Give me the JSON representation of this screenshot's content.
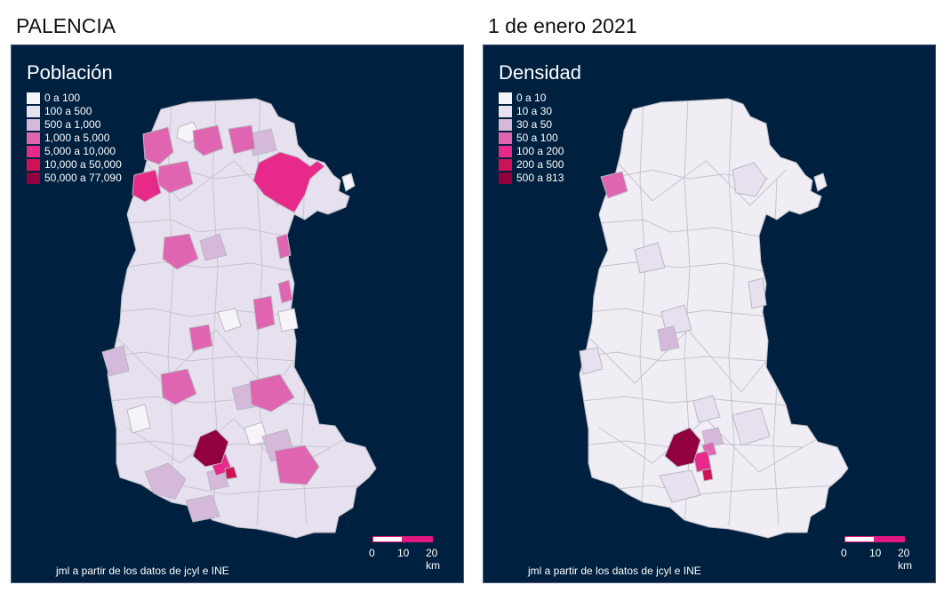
{
  "headings": {
    "left": "PALENCIA",
    "right": "1 de enero 2021"
  },
  "colors": {
    "background": "#00203f",
    "boundary": "#b9b9c2",
    "scale_accent": "#e0187f"
  },
  "left_map": {
    "legend_title": "Población",
    "legend": [
      {
        "label": "0 a 100",
        "color": "#f7f4f9"
      },
      {
        "label": "100 a 500",
        "color": "#e7e1ef"
      },
      {
        "label": "500 a 1,000",
        "color": "#d4b9da"
      },
      {
        "label": "1,000 a 5,000",
        "color": "#df65b0"
      },
      {
        "label": "5,000 a 10,000",
        "color": "#e7298a"
      },
      {
        "label": "10,000 a 50,000",
        "color": "#ce1256"
      },
      {
        "label": "50,000 a 77,090",
        "color": "#91003f"
      }
    ],
    "scale": {
      "ticks": [
        "0",
        "10",
        "20 km"
      ]
    },
    "credit": "jml a partir de los datos de jcyl e INE"
  },
  "right_map": {
    "legend_title": "Densidad",
    "legend": [
      {
        "label": "0 a 10",
        "color": "#f7f4f9"
      },
      {
        "label": "10 a 30",
        "color": "#e7e1ef"
      },
      {
        "label": "30 a 50",
        "color": "#d4b9da"
      },
      {
        "label": "50 a 100",
        "color": "#df65b0"
      },
      {
        "label": "100 a 200",
        "color": "#e7298a"
      },
      {
        "label": "200 a 500",
        "color": "#ce1256"
      },
      {
        "label": "500 a 813",
        "color": "#91003f"
      }
    ],
    "scale": {
      "ticks": [
        "0",
        "10",
        "20 km"
      ]
    },
    "credit": "jml a partir de los datos de jcyl e INE"
  }
}
